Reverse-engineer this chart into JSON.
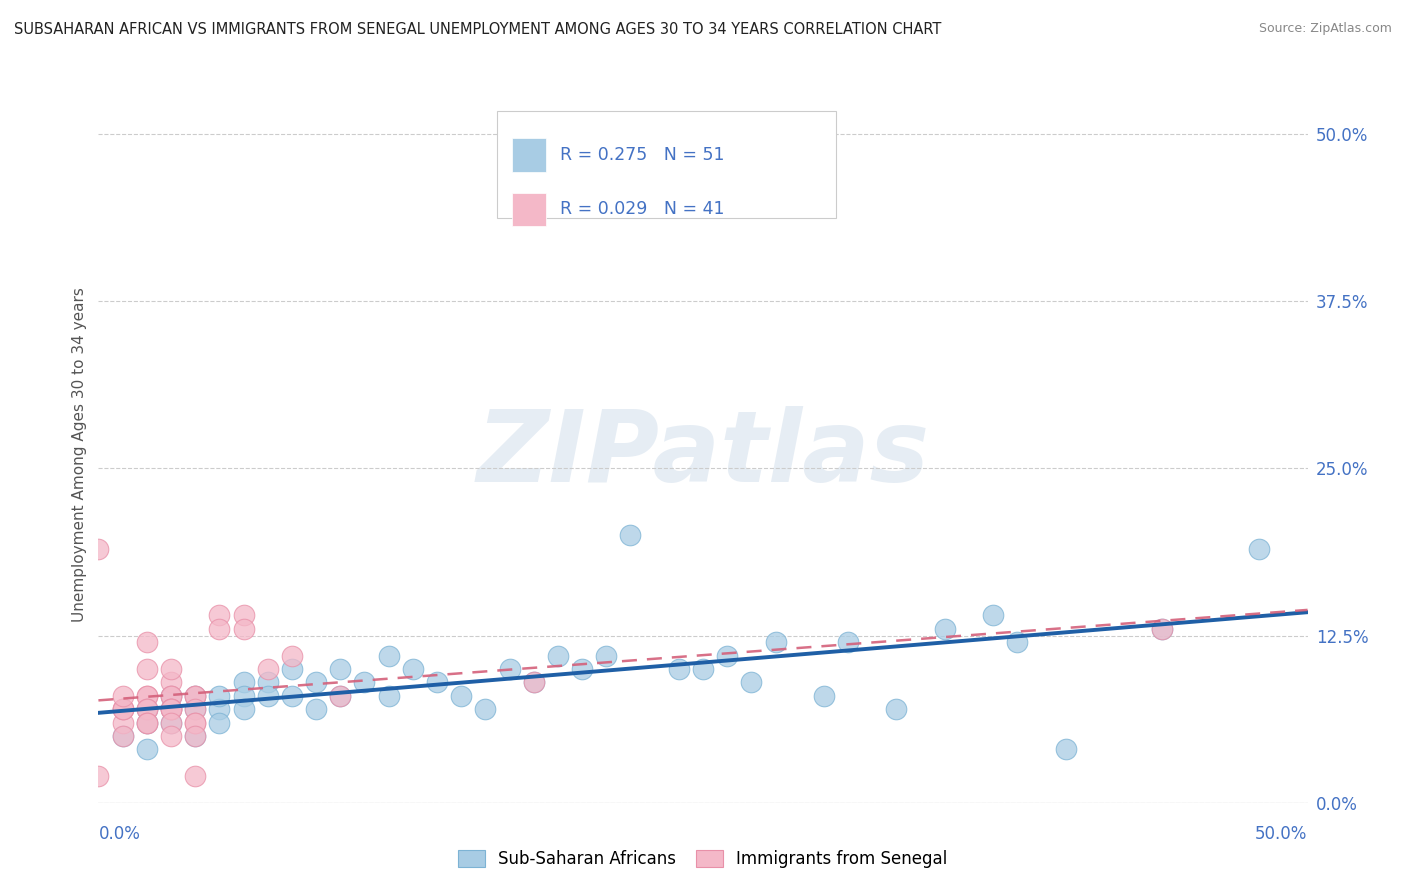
{
  "title": "SUBSAHARAN AFRICAN VS IMMIGRANTS FROM SENEGAL UNEMPLOYMENT AMONG AGES 30 TO 34 YEARS CORRELATION CHART",
  "source": "Source: ZipAtlas.com",
  "ylabel": "Unemployment Among Ages 30 to 34 years",
  "xlabel_bottom_left": "0.0%",
  "xlabel_bottom_right": "50.0%",
  "ytick_vals": [
    0.0,
    0.125,
    0.25,
    0.375,
    0.5
  ],
  "xlim": [
    0.0,
    0.5
  ],
  "ylim": [
    0.0,
    0.52
  ],
  "blue_R": 0.275,
  "blue_N": 51,
  "pink_R": 0.029,
  "pink_N": 41,
  "blue_color": "#a8cce4",
  "blue_edge": "#7db3d4",
  "pink_color": "#f4b8c8",
  "pink_edge": "#e890a8",
  "trend_blue": "#1f5fa6",
  "trend_pink": "#d4607a",
  "legend_label_blue": "Sub-Saharan Africans",
  "legend_label_pink": "Immigrants from Senegal",
  "watermark": "ZIPatlas",
  "title_color": "#222222",
  "source_color": "#888888",
  "axis_label_color": "#4472c4",
  "ylabel_color": "#555555",
  "blue_x": [
    0.01,
    0.02,
    0.02,
    0.02,
    0.03,
    0.03,
    0.03,
    0.04,
    0.04,
    0.04,
    0.05,
    0.05,
    0.05,
    0.06,
    0.06,
    0.06,
    0.07,
    0.07,
    0.08,
    0.08,
    0.09,
    0.09,
    0.1,
    0.1,
    0.11,
    0.12,
    0.12,
    0.13,
    0.14,
    0.15,
    0.16,
    0.17,
    0.18,
    0.19,
    0.2,
    0.21,
    0.22,
    0.24,
    0.25,
    0.26,
    0.27,
    0.28,
    0.3,
    0.31,
    0.33,
    0.35,
    0.37,
    0.38,
    0.4,
    0.44,
    0.48
  ],
  "blue_y": [
    0.05,
    0.06,
    0.07,
    0.04,
    0.07,
    0.08,
    0.06,
    0.07,
    0.08,
    0.05,
    0.07,
    0.08,
    0.06,
    0.09,
    0.08,
    0.07,
    0.09,
    0.08,
    0.1,
    0.08,
    0.09,
    0.07,
    0.1,
    0.08,
    0.09,
    0.11,
    0.08,
    0.1,
    0.09,
    0.08,
    0.07,
    0.1,
    0.09,
    0.11,
    0.1,
    0.11,
    0.2,
    0.1,
    0.1,
    0.11,
    0.09,
    0.12,
    0.08,
    0.12,
    0.07,
    0.13,
    0.14,
    0.12,
    0.04,
    0.13,
    0.19
  ],
  "pink_x": [
    0.0,
    0.0,
    0.01,
    0.01,
    0.01,
    0.01,
    0.01,
    0.01,
    0.02,
    0.02,
    0.02,
    0.02,
    0.02,
    0.02,
    0.02,
    0.02,
    0.03,
    0.03,
    0.03,
    0.03,
    0.03,
    0.03,
    0.03,
    0.03,
    0.03,
    0.04,
    0.04,
    0.04,
    0.04,
    0.04,
    0.04,
    0.04,
    0.05,
    0.05,
    0.06,
    0.06,
    0.07,
    0.08,
    0.1,
    0.18,
    0.44
  ],
  "pink_y": [
    0.19,
    0.02,
    0.07,
    0.06,
    0.07,
    0.07,
    0.08,
    0.05,
    0.08,
    0.1,
    0.12,
    0.08,
    0.07,
    0.07,
    0.06,
    0.06,
    0.09,
    0.1,
    0.08,
    0.08,
    0.07,
    0.07,
    0.07,
    0.06,
    0.05,
    0.08,
    0.08,
    0.07,
    0.06,
    0.06,
    0.05,
    0.02,
    0.14,
    0.13,
    0.14,
    0.13,
    0.1,
    0.11,
    0.08,
    0.09,
    0.13
  ]
}
